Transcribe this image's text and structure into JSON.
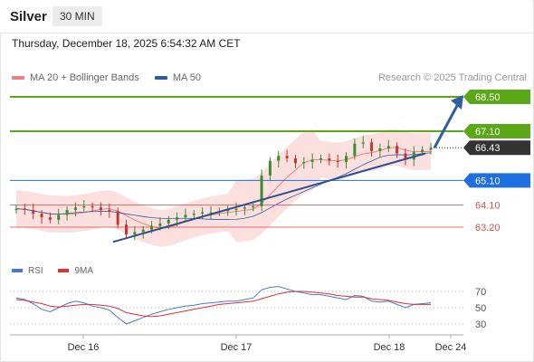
{
  "header": {
    "symbol": "Silver",
    "timeframe": "30 MIN",
    "datetime": "Thursday, December 18, 2025 6:54:32 AM CET"
  },
  "legend": {
    "items": [
      {
        "label": "MA 20 + Bollinger Bands",
        "color": "#f08080"
      },
      {
        "label": "MA 50",
        "color": "#2f5d9e"
      }
    ],
    "credit": "Research © 2025 Trading Central"
  },
  "chart_data": [
    {
      "type": "candlestick",
      "title": "Silver",
      "x_ticks": [
        "Dec 16",
        "Dec 17",
        "Dec 18",
        "Dec 24"
      ],
      "ylim": [
        62.3,
        69.0
      ],
      "levels": [
        {
          "value": 68.5,
          "label": "68.50",
          "color": "#5aa817",
          "style": "resistance"
        },
        {
          "value": 67.1,
          "label": "67.10",
          "color": "#5aa817",
          "style": "resistance"
        },
        {
          "value": 66.43,
          "label": "66.43",
          "color": "#333333",
          "style": "last_price"
        },
        {
          "value": 65.1,
          "label": "65.10",
          "color": "#1e6fe0",
          "style": "pivot"
        },
        {
          "value": 64.1,
          "label": "64.10",
          "color": "#e05050",
          "style": "support"
        },
        {
          "value": 63.2,
          "label": "63.20",
          "color": "#e05050",
          "style": "support"
        }
      ],
      "close_series_approx": [
        63.95,
        63.9,
        63.75,
        63.6,
        63.5,
        63.7,
        63.9,
        64.0,
        64.05,
        64.0,
        63.9,
        63.85,
        63.3,
        62.9,
        63.0,
        63.1,
        63.25,
        63.35,
        63.5,
        63.6,
        63.7,
        63.75,
        63.8,
        63.8,
        63.85,
        63.9,
        63.95,
        64.0,
        64.05,
        65.3,
        65.9,
        66.1,
        66.0,
        65.8,
        65.85,
        65.95,
        66.0,
        65.9,
        65.85,
        66.1,
        66.6,
        66.65,
        66.3,
        66.4,
        66.5,
        66.2,
        65.95,
        66.25,
        66.35,
        66.43
      ],
      "indicators": [
        "MA 20 + Bollinger Bands",
        "MA 50"
      ],
      "projection": {
        "from": 66.43,
        "to": 68.5
      }
    },
    {
      "type": "line",
      "title": "RSI",
      "series": [
        {
          "name": "RSI",
          "color": "#4a78d0"
        },
        {
          "name": "9MA",
          "color": "#e03030"
        }
      ],
      "y_ticks": [
        "70",
        "50",
        "30"
      ],
      "ylim": [
        20,
        80
      ],
      "rsi_values_approx": [
        62,
        60,
        55,
        48,
        45,
        50,
        55,
        58,
        56,
        52,
        50,
        47,
        38,
        30,
        34,
        38,
        42,
        45,
        48,
        50,
        52,
        53,
        55,
        56,
        57,
        58,
        58,
        60,
        62,
        72,
        75,
        76,
        73,
        70,
        68,
        66,
        66,
        64,
        62,
        60,
        65,
        64,
        58,
        57,
        58,
        54,
        50,
        54,
        55,
        56
      ],
      "ma9_values_approx": [
        60,
        59,
        57,
        55,
        52,
        51,
        52,
        53,
        54,
        54,
        53,
        52,
        49,
        44,
        42,
        40,
        39,
        40,
        42,
        44,
        46,
        48,
        50,
        52,
        54,
        55,
        56,
        57,
        58,
        61,
        64,
        67,
        69,
        70,
        70,
        69,
        68,
        67,
        65,
        64,
        63,
        63,
        61,
        60,
        59,
        57,
        55,
        54,
        54,
        54
      ]
    }
  ]
}
